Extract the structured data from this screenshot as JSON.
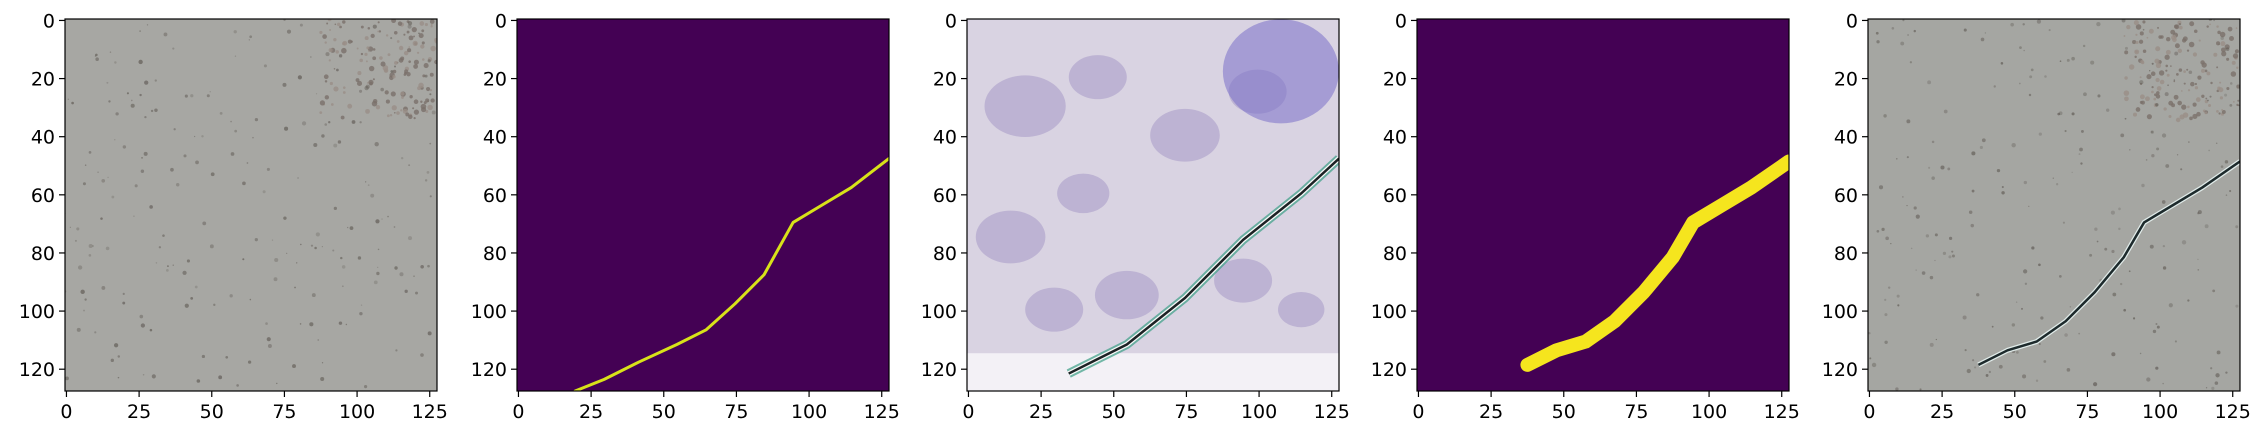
{
  "chart_data": [
    {
      "type": "image",
      "content": "concrete-surface-photo",
      "xlim": [
        0,
        128
      ],
      "ylim": [
        128,
        0
      ],
      "xticks": [
        0,
        25,
        50,
        75,
        100,
        125
      ],
      "yticks": [
        0,
        20,
        40,
        60,
        80,
        100,
        120
      ],
      "colors": {
        "base": "#a7a7a3",
        "speckle": "#5c5650",
        "patch": "#8a7f78"
      }
    },
    {
      "type": "heatmap",
      "content": "binary-crack-mask",
      "xlim": [
        0,
        128
      ],
      "ylim": [
        128,
        0
      ],
      "xticks": [
        0,
        25,
        50,
        75,
        100,
        125
      ],
      "yticks": [
        0,
        20,
        40,
        60,
        80,
        100,
        120
      ],
      "colors": {
        "background": "#440154",
        "crack": "#d8e219"
      },
      "crack_path": {
        "x": [
          20,
          30,
          42,
          55,
          65,
          75,
          85,
          95,
          105,
          115,
          128
        ],
        "y": [
          128,
          124,
          118,
          112,
          107,
          98,
          88,
          70,
          64,
          58,
          48
        ]
      }
    },
    {
      "type": "image",
      "content": "generated-crack-image",
      "xlim": [
        0,
        128
      ],
      "ylim": [
        128,
        0
      ],
      "xticks": [
        0,
        25,
        50,
        75,
        100,
        125
      ],
      "yticks": [
        0,
        20,
        40,
        60,
        80,
        100,
        120
      ],
      "colors": {
        "base": "#d9d3e2",
        "blob": "#9b8cc2",
        "dark_blob": "#7a6fc8",
        "crack": "#1c2224",
        "edge": "#3a9e86"
      },
      "crack_path": {
        "x": [
          35,
          45,
          55,
          65,
          75,
          85,
          95,
          105,
          115,
          128
        ],
        "y": [
          122,
          117,
          112,
          104,
          96,
          86,
          76,
          68,
          60,
          48
        ]
      }
    },
    {
      "type": "heatmap",
      "content": "predicted-crack-mask",
      "xlim": [
        0,
        128
      ],
      "ylim": [
        128,
        0
      ],
      "xticks": [
        0,
        25,
        50,
        75,
        100,
        125
      ],
      "yticks": [
        0,
        20,
        40,
        60,
        80,
        100,
        120
      ],
      "colors": {
        "background": "#440154",
        "crack": "#f5e51e"
      },
      "crack_path": {
        "x": [
          38,
          48,
          58,
          68,
          78,
          88,
          95,
          105,
          115,
          128
        ],
        "y": [
          119,
          114,
          111,
          104,
          94,
          82,
          70,
          64,
          58,
          49
        ]
      }
    },
    {
      "type": "image",
      "content": "surface-photo-with-crack-overlay",
      "xlim": [
        0,
        128
      ],
      "ylim": [
        128,
        0
      ],
      "xticks": [
        0,
        25,
        50,
        75,
        100,
        125
      ],
      "yticks": [
        0,
        20,
        40,
        60,
        80,
        100,
        120
      ],
      "colors": {
        "base": "#a5a6a2",
        "speckle": "#5c5650",
        "crack": "#1d2a2c",
        "edge": "#e8f4f2"
      },
      "crack_path": {
        "x": [
          38,
          48,
          58,
          68,
          78,
          88,
          95,
          105,
          115,
          128
        ],
        "y": [
          119,
          114,
          111,
          104,
          94,
          82,
          70,
          64,
          58,
          49
        ]
      }
    }
  ]
}
